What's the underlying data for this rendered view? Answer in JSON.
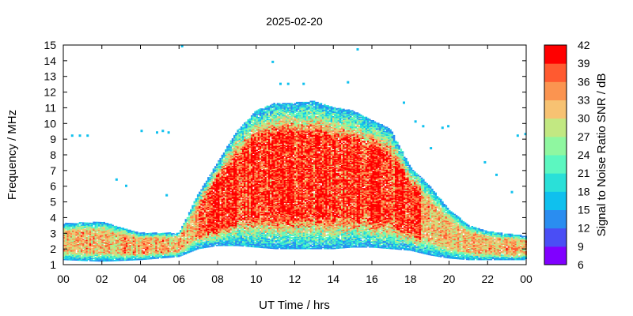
{
  "chart_data": {
    "type": "heatmap",
    "title": "2025-02-20",
    "xlabel": "UT Time / hrs",
    "ylabel": "Frequency / MHz",
    "xlim": [
      0,
      24
    ],
    "ylim": [
      1,
      15
    ],
    "x_ticks": [
      "00",
      "02",
      "04",
      "06",
      "08",
      "10",
      "12",
      "14",
      "16",
      "18",
      "20",
      "22",
      "00"
    ],
    "y_ticks": [
      1,
      2,
      3,
      4,
      5,
      6,
      7,
      8,
      9,
      10,
      11,
      12,
      13,
      14,
      15
    ],
    "colorbar": {
      "label": "Signal to Noise Ratio SNR / dB",
      "range": [
        6,
        42
      ],
      "ticks": [
        6,
        9,
        12,
        15,
        18,
        21,
        24,
        27,
        30,
        33,
        36,
        39,
        42
      ],
      "colors": [
        "#8000ff",
        "#4a4ef5",
        "#2a8df0",
        "#0fc0ee",
        "#2ae0d8",
        "#5cf7c0",
        "#8ff7a0",
        "#c2e882",
        "#f7c272",
        "#fb9450",
        "#ff5a30",
        "#ff0000"
      ]
    },
    "grid": false,
    "envelope": {
      "description_hours": [
        0,
        2,
        4,
        6,
        7,
        8,
        9,
        10,
        11,
        12,
        13,
        14,
        15,
        16,
        17,
        18,
        19,
        20,
        21,
        22,
        24
      ],
      "top_mhz": [
        3.6,
        3.7,
        3.0,
        3.0,
        5.5,
        7.5,
        9.5,
        10.8,
        11.3,
        11.3,
        11.4,
        11.0,
        10.8,
        10.2,
        9.6,
        7.2,
        6.0,
        4.5,
        3.5,
        3.1,
        2.8
      ],
      "bottom_mhz": [
        1.3,
        1.2,
        1.3,
        1.5,
        2.0,
        2.2,
        2.2,
        2.1,
        2.0,
        2.0,
        2.0,
        2.0,
        2.1,
        2.1,
        2.0,
        1.9,
        1.6,
        1.4,
        1.3,
        1.3,
        1.3
      ]
    }
  }
}
